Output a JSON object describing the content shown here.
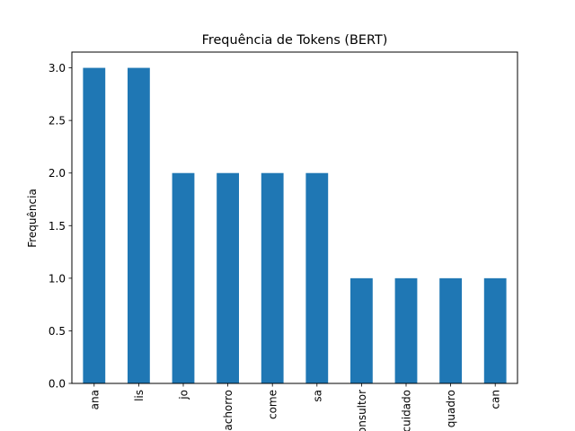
{
  "chart_data": {
    "type": "bar",
    "title": "Frequência de Tokens (BERT)",
    "xlabel": "",
    "ylabel": "Frequência",
    "categories": [
      "ana",
      "lis",
      "jo",
      "cachorro",
      "come",
      "sa",
      "consultor",
      "cuidado",
      "quadro",
      "can"
    ],
    "values": [
      3,
      3,
      2,
      2,
      2,
      2,
      1,
      1,
      1,
      1
    ],
    "ylim": [
      0,
      3.15
    ],
    "yticks": [
      "0.0",
      "0.5",
      "1.0",
      "1.5",
      "2.0",
      "2.5",
      "3.0"
    ],
    "bar_color": "#1f77b4",
    "grid": false,
    "legend": "none"
  }
}
